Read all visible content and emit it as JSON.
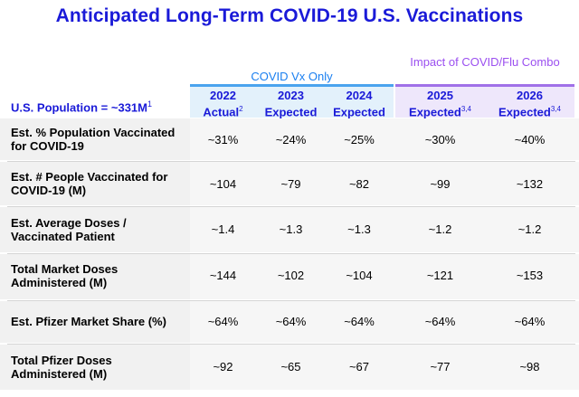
{
  "title": "Anticipated Long-Term COVID-19 U.S. Vaccinations",
  "groups": {
    "covid_only": "COVID Vx Only",
    "combo": "Impact of COVID/Flu Combo"
  },
  "population": {
    "label": "U.S. Population = ~331M",
    "note": "1"
  },
  "columns": [
    {
      "year": "2022",
      "status": "Actual",
      "note": "2"
    },
    {
      "year": "2023",
      "status": "Expected",
      "note": ""
    },
    {
      "year": "2024",
      "status": "Expected",
      "note": ""
    },
    {
      "year": "2025",
      "status": "Expected",
      "note": "3,4"
    },
    {
      "year": "2026",
      "status": "Expected",
      "note": "3,4"
    }
  ],
  "rows": [
    {
      "label": "Est. % Population Vaccinated for COVID-19",
      "values": [
        "~31%",
        "~24%",
        "~25%",
        "~30%",
        "~40%"
      ]
    },
    {
      "label": "Est. # People Vaccinated for COVID-19 (M)",
      "values": [
        "~104",
        "~79",
        "~82",
        "~99",
        "~132"
      ]
    },
    {
      "label": "Est. Average Doses / Vaccinated Patient",
      "values": [
        "~1.4",
        "~1.3",
        "~1.3",
        "~1.2",
        "~1.2"
      ]
    },
    {
      "label": "Total Market Doses Administered (M)",
      "values": [
        "~144",
        "~102",
        "~104",
        "~121",
        "~153"
      ]
    },
    {
      "label": "Est. Pfizer Market Share (%)",
      "values": [
        "~64%",
        "~64%",
        "~64%",
        "~64%",
        "~64%"
      ]
    },
    {
      "label": "Total Pfizer Doses Administered (M)",
      "values": [
        "~92",
        "~65",
        "~67",
        "~77",
        "~98"
      ]
    }
  ],
  "colors": {
    "title": "#1a1ad8",
    "covid_group": "#1a7ff0",
    "combo_group": "#9b4ff0"
  }
}
